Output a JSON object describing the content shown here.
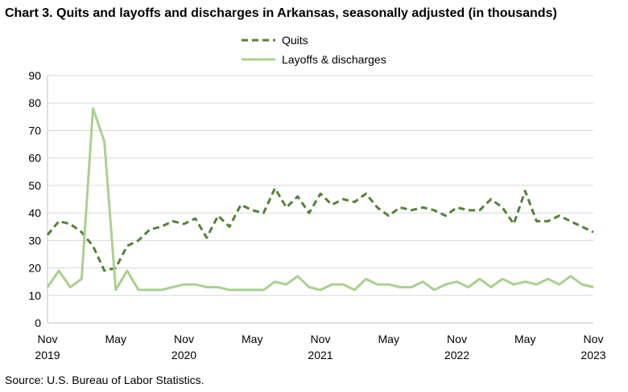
{
  "chart_data": {
    "type": "line",
    "title": "Chart 3. Quits and layoffs and discharges in Arkansas, seasonally adjusted (in thousands)",
    "xlabel": "",
    "ylabel": "",
    "ylim": [
      0,
      90
    ],
    "yticks": [
      0,
      10,
      20,
      30,
      40,
      50,
      60,
      70,
      80,
      90
    ],
    "grid": true,
    "legend_position": "top-center",
    "x": [
      "2019-11",
      "2019-12",
      "2020-01",
      "2020-02",
      "2020-03",
      "2020-04",
      "2020-05",
      "2020-06",
      "2020-07",
      "2020-08",
      "2020-09",
      "2020-10",
      "2020-11",
      "2020-12",
      "2021-01",
      "2021-02",
      "2021-03",
      "2021-04",
      "2021-05",
      "2021-06",
      "2021-07",
      "2021-08",
      "2021-09",
      "2021-10",
      "2021-11",
      "2021-12",
      "2022-01",
      "2022-02",
      "2022-03",
      "2022-04",
      "2022-05",
      "2022-06",
      "2022-07",
      "2022-08",
      "2022-09",
      "2022-10",
      "2022-11",
      "2022-12",
      "2023-01",
      "2023-02",
      "2023-03",
      "2023-04",
      "2023-05",
      "2023-06",
      "2023-07",
      "2023-08",
      "2023-09",
      "2023-10",
      "2023-11"
    ],
    "x_tick_labels": [
      {
        "month": "Nov",
        "year": "2019",
        "x": "2019-11"
      },
      {
        "month": "May",
        "year": "",
        "x": "2020-05"
      },
      {
        "month": "Nov",
        "year": "2020",
        "x": "2020-11"
      },
      {
        "month": "May",
        "year": "",
        "x": "2021-05"
      },
      {
        "month": "Nov",
        "year": "2021",
        "x": "2021-11"
      },
      {
        "month": "May",
        "year": "",
        "x": "2022-05"
      },
      {
        "month": "Nov",
        "year": "2022",
        "x": "2022-11"
      },
      {
        "month": "May",
        "year": "",
        "x": "2023-05"
      },
      {
        "month": "Nov",
        "year": "2023",
        "x": "2023-11"
      }
    ],
    "series": [
      {
        "name": "Quits",
        "color": "#548235",
        "style": "dashed",
        "values": [
          32,
          37,
          36,
          33,
          28,
          19,
          20,
          28,
          30,
          34,
          35,
          37,
          36,
          38,
          31,
          39,
          35,
          43,
          41,
          40,
          49,
          42,
          46,
          40,
          47,
          43,
          45,
          44,
          47,
          42,
          39,
          42,
          41,
          42,
          41,
          39,
          42,
          41,
          41,
          45,
          42,
          36,
          48,
          37,
          37,
          39,
          37,
          35,
          33
        ]
      },
      {
        "name": "Layoffs & discharges",
        "color": "#a9d18e",
        "style": "solid",
        "values": [
          13,
          19,
          13,
          16,
          78,
          66,
          12,
          19,
          12,
          12,
          12,
          13,
          14,
          14,
          13,
          13,
          12,
          12,
          12,
          12,
          15,
          14,
          17,
          13,
          12,
          14,
          14,
          12,
          16,
          14,
          14,
          13,
          13,
          15,
          12,
          14,
          15,
          13,
          16,
          13,
          16,
          14,
          15,
          14,
          16,
          14,
          17,
          14,
          13
        ]
      }
    ]
  },
  "footer": {
    "source": "Source: U.S. Bureau of Labor Statistics."
  }
}
